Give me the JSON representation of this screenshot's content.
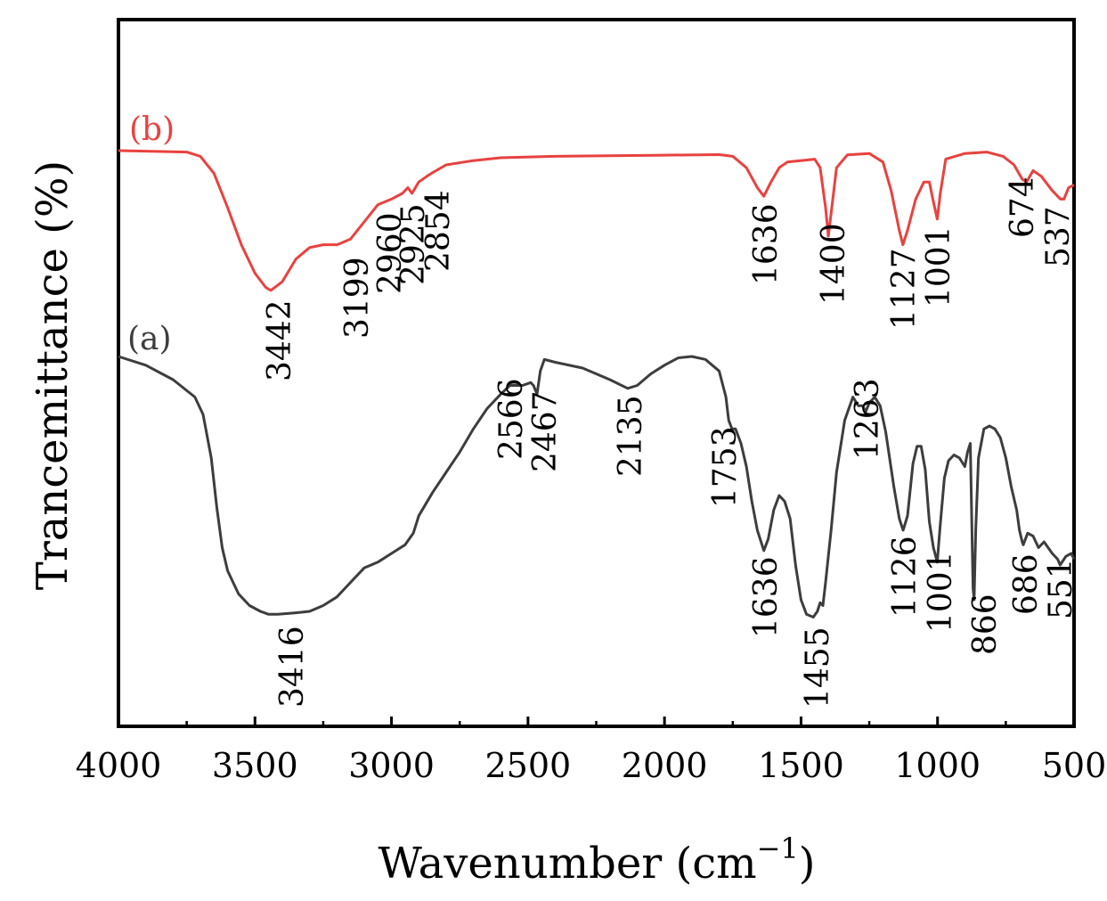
{
  "chart_data": {
    "type": "line",
    "title": "",
    "xlabel": "Wavenumber (cm",
    "xlabel_sup": "−1",
    "xlabel_close": ")",
    "ylabel": "Trancemittance (%)",
    "xlim": [
      4000,
      500
    ],
    "x_reversed": true,
    "xticks": [
      4000,
      3500,
      3000,
      2500,
      2000,
      1500,
      1000,
      500
    ],
    "yticks_shown": false,
    "grid": false,
    "legend": "none",
    "series": [
      {
        "name": "(b)",
        "color": "#e8423f",
        "points": [
          [
            4000,
            0
          ],
          [
            3750,
            0.5
          ],
          [
            3700,
            2
          ],
          [
            3650,
            8
          ],
          [
            3600,
            20
          ],
          [
            3550,
            33
          ],
          [
            3500,
            43
          ],
          [
            3460,
            48
          ],
          [
            3442,
            49
          ],
          [
            3400,
            46
          ],
          [
            3350,
            38
          ],
          [
            3300,
            34
          ],
          [
            3250,
            33
          ],
          [
            3199,
            33
          ],
          [
            3150,
            31
          ],
          [
            3100,
            25
          ],
          [
            3050,
            19
          ],
          [
            3000,
            17
          ],
          [
            2960,
            15
          ],
          [
            2940,
            13
          ],
          [
            2925,
            15
          ],
          [
            2900,
            11
          ],
          [
            2870,
            9
          ],
          [
            2854,
            8
          ],
          [
            2800,
            5
          ],
          [
            2700,
            3.5
          ],
          [
            2600,
            2.5
          ],
          [
            2400,
            2
          ],
          [
            2200,
            1.8
          ],
          [
            2000,
            1.6
          ],
          [
            1800,
            1.4
          ],
          [
            1750,
            2
          ],
          [
            1700,
            6
          ],
          [
            1660,
            13
          ],
          [
            1636,
            16
          ],
          [
            1610,
            11
          ],
          [
            1580,
            6
          ],
          [
            1550,
            4
          ],
          [
            1500,
            3.5
          ],
          [
            1450,
            3
          ],
          [
            1430,
            6
          ],
          [
            1410,
            20
          ],
          [
            1400,
            30
          ],
          [
            1390,
            22
          ],
          [
            1370,
            6
          ],
          [
            1330,
            1.5
          ],
          [
            1250,
            1
          ],
          [
            1200,
            4
          ],
          [
            1170,
            14
          ],
          [
            1140,
            28
          ],
          [
            1127,
            33
          ],
          [
            1110,
            28
          ],
          [
            1080,
            17
          ],
          [
            1050,
            11
          ],
          [
            1030,
            11
          ],
          [
            1015,
            18
          ],
          [
            1001,
            24
          ],
          [
            990,
            15
          ],
          [
            970,
            3
          ],
          [
            900,
            1
          ],
          [
            820,
            0.5
          ],
          [
            760,
            2
          ],
          [
            720,
            5
          ],
          [
            690,
            10
          ],
          [
            674,
            11
          ],
          [
            650,
            7
          ],
          [
            620,
            9
          ],
          [
            580,
            14
          ],
          [
            550,
            17
          ],
          [
            537,
            17
          ],
          [
            520,
            13
          ],
          [
            500,
            12
          ]
        ]
      },
      {
        "name": "(a)",
        "color": "#3d3d3d",
        "points": [
          [
            4000,
            0
          ],
          [
            3900,
            3
          ],
          [
            3800,
            8
          ],
          [
            3720,
            14
          ],
          [
            3690,
            20
          ],
          [
            3660,
            35
          ],
          [
            3640,
            52
          ],
          [
            3620,
            66
          ],
          [
            3600,
            74
          ],
          [
            3560,
            82
          ],
          [
            3520,
            86
          ],
          [
            3480,
            88
          ],
          [
            3450,
            89
          ],
          [
            3416,
            89
          ],
          [
            3350,
            88.5
          ],
          [
            3300,
            88
          ],
          [
            3250,
            86
          ],
          [
            3200,
            83
          ],
          [
            3150,
            78
          ],
          [
            3100,
            73
          ],
          [
            3050,
            71
          ],
          [
            3000,
            68
          ],
          [
            2950,
            65
          ],
          [
            2920,
            61
          ],
          [
            2900,
            55
          ],
          [
            2850,
            47
          ],
          [
            2800,
            40
          ],
          [
            2750,
            33
          ],
          [
            2700,
            25
          ],
          [
            2650,
            18
          ],
          [
            2600,
            13
          ],
          [
            2566,
            10
          ],
          [
            2520,
            10
          ],
          [
            2490,
            9
          ],
          [
            2480,
            10
          ],
          [
            2467,
            13
          ],
          [
            2455,
            5
          ],
          [
            2440,
            1
          ],
          [
            2400,
            2
          ],
          [
            2300,
            4
          ],
          [
            2200,
            8
          ],
          [
            2135,
            11
          ],
          [
            2100,
            10
          ],
          [
            2050,
            6
          ],
          [
            2000,
            3
          ],
          [
            1950,
            0.5
          ],
          [
            1900,
            0
          ],
          [
            1850,
            1
          ],
          [
            1800,
            5
          ],
          [
            1775,
            14
          ],
          [
            1765,
            22
          ],
          [
            1753,
            25
          ],
          [
            1740,
            25
          ],
          [
            1720,
            30
          ],
          [
            1700,
            38
          ],
          [
            1680,
            50
          ],
          [
            1660,
            60
          ],
          [
            1636,
            67
          ],
          [
            1620,
            63
          ],
          [
            1600,
            53
          ],
          [
            1580,
            48
          ],
          [
            1560,
            50
          ],
          [
            1540,
            56
          ],
          [
            1520,
            72
          ],
          [
            1500,
            84
          ],
          [
            1480,
            89
          ],
          [
            1455,
            90
          ],
          [
            1440,
            88
          ],
          [
            1430,
            85
          ],
          [
            1420,
            86
          ],
          [
            1410,
            78
          ],
          [
            1390,
            60
          ],
          [
            1370,
            40
          ],
          [
            1340,
            22
          ],
          [
            1310,
            14
          ],
          [
            1290,
            17
          ],
          [
            1275,
            17
          ],
          [
            1263,
            19
          ],
          [
            1250,
            16
          ],
          [
            1230,
            14
          ],
          [
            1210,
            17
          ],
          [
            1190,
            26
          ],
          [
            1160,
            45
          ],
          [
            1140,
            56
          ],
          [
            1126,
            60
          ],
          [
            1110,
            55
          ],
          [
            1090,
            37
          ],
          [
            1075,
            31
          ],
          [
            1060,
            31
          ],
          [
            1045,
            39
          ],
          [
            1030,
            57
          ],
          [
            1015,
            66
          ],
          [
            1001,
            71
          ],
          [
            990,
            58
          ],
          [
            975,
            42
          ],
          [
            960,
            36
          ],
          [
            940,
            34
          ],
          [
            920,
            35
          ],
          [
            900,
            38
          ],
          [
            890,
            33
          ],
          [
            880,
            30
          ],
          [
            870,
            80
          ],
          [
            866,
            84
          ],
          [
            860,
            60
          ],
          [
            850,
            35
          ],
          [
            830,
            25
          ],
          [
            810,
            24
          ],
          [
            790,
            25
          ],
          [
            770,
            28
          ],
          [
            750,
            35
          ],
          [
            730,
            45
          ],
          [
            710,
            53
          ],
          [
            700,
            60
          ],
          [
            690,
            64
          ],
          [
            686,
            65
          ],
          [
            670,
            61
          ],
          [
            650,
            62
          ],
          [
            630,
            66
          ],
          [
            610,
            64
          ],
          [
            580,
            68
          ],
          [
            560,
            70
          ],
          [
            551,
            72
          ],
          [
            530,
            69
          ],
          [
            510,
            68
          ],
          [
            500,
            70
          ]
        ]
      }
    ],
    "annotations": {
      "b": [
        "3442",
        "3199",
        "2960",
        "2925",
        "2854",
        "1636",
        "1400",
        "1127",
        "1001",
        "674",
        "537"
      ],
      "a": [
        "3416",
        "2566",
        "2467",
        "2135",
        "1753",
        "1636",
        "1455",
        "1263",
        "1126",
        "1001",
        "866",
        "686",
        "551"
      ]
    }
  }
}
